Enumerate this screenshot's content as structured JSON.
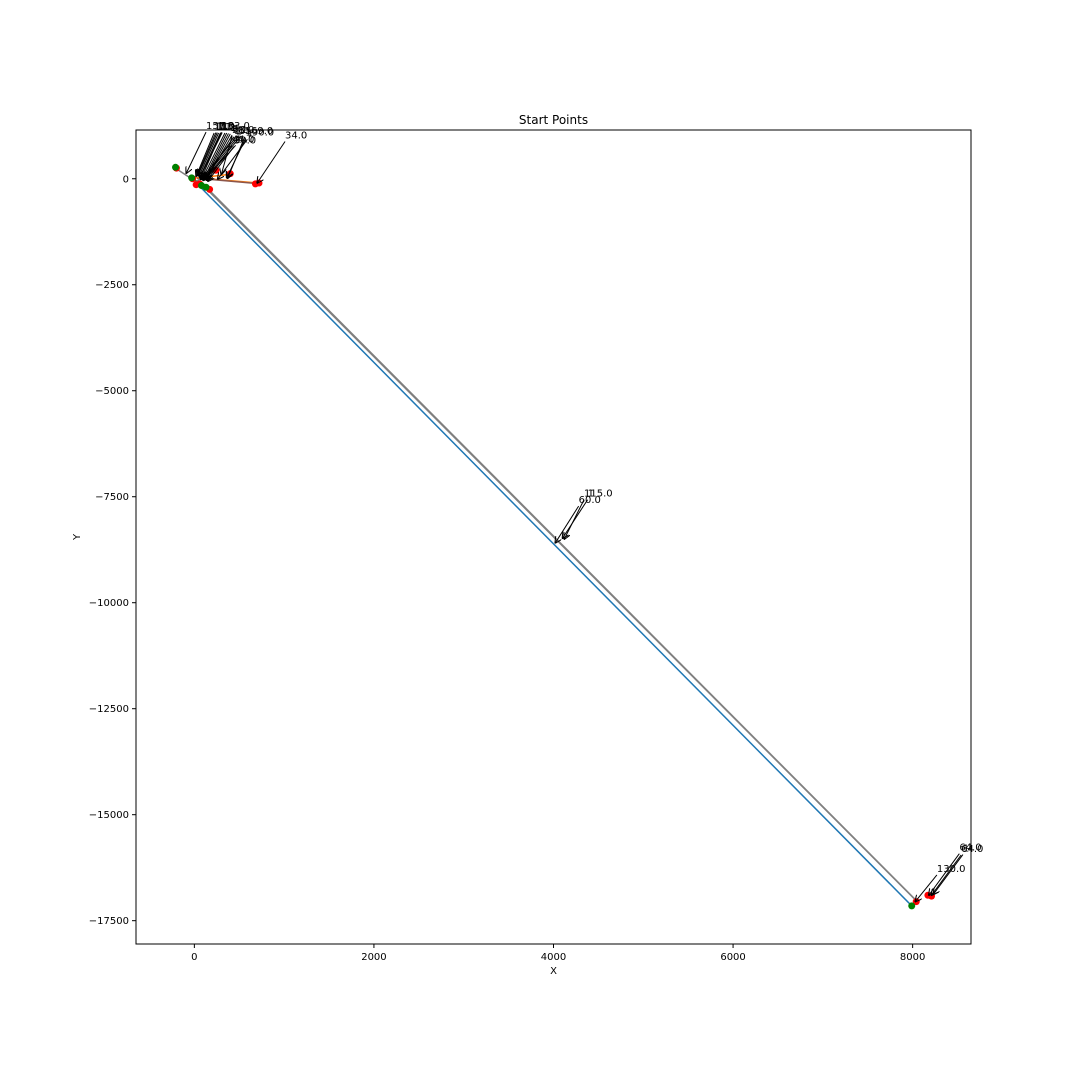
{
  "chart_data": {
    "type": "scatter",
    "title": "Start Points",
    "xlabel": "X",
    "ylabel": "Y",
    "xlim": [
      -650,
      8650
    ],
    "ylim": [
      -18050,
      1150
    ],
    "xticks": [
      0,
      2000,
      4000,
      6000,
      8000
    ],
    "xtick_labels": [
      "0",
      "2000",
      "4000",
      "6000",
      "8000"
    ],
    "yticks": [
      0,
      -2500,
      -5000,
      -7500,
      -10000,
      -12500,
      -15000,
      -17500
    ],
    "ytick_labels": [
      "0",
      "−2500",
      "−5000",
      "−7500",
      "−10000",
      "−12500",
      "−15000",
      "−17500"
    ],
    "grid": false,
    "colors": {
      "red_points": "#ff0000",
      "green_points": "#008000",
      "blue_line": "#1f77b4",
      "orange_line": "#ff7f0e",
      "gray_line": "#7f7f7f",
      "green_line": "#2ca02c",
      "brown_line": "#8c564b",
      "annotation": "#000000"
    },
    "series": [
      {
        "color": "blue_line",
        "points": [
          [
            60,
            -180
          ],
          [
            7990,
            -17150
          ]
        ]
      },
      {
        "color": "gray_line",
        "points": [
          [
            80,
            -120
          ],
          [
            8050,
            -17050
          ]
        ]
      },
      {
        "color": "gray_line",
        "points": [
          [
            100,
            -130
          ],
          [
            8030,
            -17000
          ]
        ]
      },
      {
        "color": "gray_line",
        "points": [
          [
            -210,
            250
          ],
          [
            150,
            -250
          ]
        ]
      },
      {
        "color": "orange_line",
        "points": [
          [
            -10,
            30
          ],
          [
            700,
            -100
          ]
        ]
      },
      {
        "color": "brown_line",
        "points": [
          [
            30,
            10
          ],
          [
            680,
            -110
          ]
        ]
      },
      {
        "color": "orange_line",
        "points": [
          [
            40,
            20
          ],
          [
            380,
            100
          ]
        ]
      },
      {
        "color": "green_line",
        "points": [
          [
            -30,
            20
          ],
          [
            130,
            -200
          ]
        ]
      },
      {
        "color": "gray_line",
        "points": [
          [
            20,
            -60
          ],
          [
            250,
            210
          ]
        ]
      }
    ],
    "red_points": [
      [
        -200,
        250
      ],
      [
        -20,
        0
      ],
      [
        20,
        -140
      ],
      [
        60,
        -120
      ],
      [
        170,
        -250
      ],
      [
        400,
        120
      ],
      [
        240,
        200
      ],
      [
        680,
        -120
      ],
      [
        720,
        -100
      ],
      [
        8170,
        -16900
      ],
      [
        8210,
        -16920
      ],
      [
        8040,
        -17050
      ]
    ],
    "green_points": [
      [
        -210,
        270
      ],
      [
        -30,
        20
      ],
      [
        80,
        -160
      ],
      [
        130,
        -200
      ],
      [
        7990,
        -17150
      ]
    ],
    "annotations": [
      {
        "text": "34.0",
        "xy": [
          700,
          -100
        ],
        "xytext": [
          1010,
          950
        ]
      },
      {
        "text": "157.0",
        "xy": [
          -90,
          130
        ],
        "xytext": [
          130,
          1170
        ]
      },
      {
        "text": "1",
        "xy": [
          20,
          60
        ],
        "xytext": [
          220,
          1150
        ]
      },
      {
        "text": "1",
        "xy": [
          30,
          70
        ],
        "xytext": [
          240,
          1160
        ]
      },
      {
        "text": "1",
        "xy": [
          40,
          80
        ],
        "xytext": [
          255,
          1160
        ]
      },
      {
        "text": "1",
        "xy": [
          50,
          60
        ],
        "xytext": [
          270,
          1150
        ]
      },
      {
        "text": "1",
        "xy": [
          60,
          40
        ],
        "xytext": [
          290,
          1150
        ]
      },
      {
        "text": "1",
        "xy": [
          60,
          20
        ],
        "xytext": [
          310,
          1160
        ]
      },
      {
        "text": "133.0",
        "xy": [
          80,
          20
        ],
        "xytext": [
          300,
          1170
        ]
      },
      {
        "text": "1",
        "xy": [
          90,
          10
        ],
        "xytext": [
          340,
          1150
        ]
      },
      {
        "text": "1",
        "xy": [
          110,
          10
        ],
        "xytext": [
          360,
          1150
        ]
      },
      {
        "text": "1",
        "xy": [
          120,
          0
        ],
        "xytext": [
          380,
          1140
        ]
      },
      {
        "text": "1",
        "xy": [
          130,
          -10
        ],
        "xytext": [
          400,
          1130
        ]
      },
      {
        "text": "8",
        "xy": [
          130,
          -30
        ],
        "xytext": [
          420,
          1100
        ]
      },
      {
        "text": "58.0",
        "xy": [
          300,
          100
        ],
        "xytext": [
          420,
          1080
        ]
      },
      {
        "text": "1",
        "xy": [
          100,
          -40
        ],
        "xytext": [
          440,
          1060
        ]
      },
      {
        "text": "1",
        "xy": [
          70,
          -20
        ],
        "xytext": [
          460,
          1040
        ]
      },
      {
        "text": "1",
        "xy": [
          90,
          -20
        ],
        "xytext": [
          490,
          1060
        ]
      },
      {
        "text": "1",
        "xy": [
          110,
          -20
        ],
        "xytext": [
          520,
          1080
        ]
      },
      {
        "text": "169.0",
        "xy": [
          370,
          10
        ],
        "xytext": [
          560,
          1050
        ]
      },
      {
        "text": "190.0",
        "xy": [
          360,
          20
        ],
        "xytext": [
          570,
          1020
        ]
      },
      {
        "text": "1",
        "xy": [
          260,
          -10
        ],
        "xytext": [
          590,
          1000
        ]
      },
      {
        "text": "30.0",
        "xy": [
          150,
          -60
        ],
        "xytext": [
          440,
          830
        ]
      },
      {
        "text": "44.0",
        "xy": [
          140,
          -40
        ],
        "xytext": [
          420,
          850
        ]
      },
      {
        "text": "1",
        "xy": [
          120,
          -10
        ],
        "xytext": [
          460,
          860
        ]
      },
      {
        "text": "115.0",
        "xy": [
          4120,
          -8500
        ],
        "xytext": [
          4340,
          -7500
        ]
      },
      {
        "text": "1",
        "xy": [
          4100,
          -8480
        ],
        "xytext": [
          4380,
          -7500
        ]
      },
      {
        "text": "60.0",
        "xy": [
          4020,
          -8590
        ],
        "xytext": [
          4280,
          -7650
        ]
      },
      {
        "text": "130.0",
        "xy": [
          8030,
          -17050
        ],
        "xytext": [
          8270,
          -16350
        ]
      },
      {
        "text": "64.0",
        "xy": [
          8180,
          -16900
        ],
        "xytext": [
          8520,
          -15850
        ]
      },
      {
        "text": "64.0",
        "xy": [
          8210,
          -16900
        ],
        "xytext": [
          8540,
          -15880
        ]
      },
      {
        "text": "1",
        "xy": [
          8230,
          -16880
        ],
        "xytext": [
          8560,
          -15870
        ]
      }
    ]
  }
}
